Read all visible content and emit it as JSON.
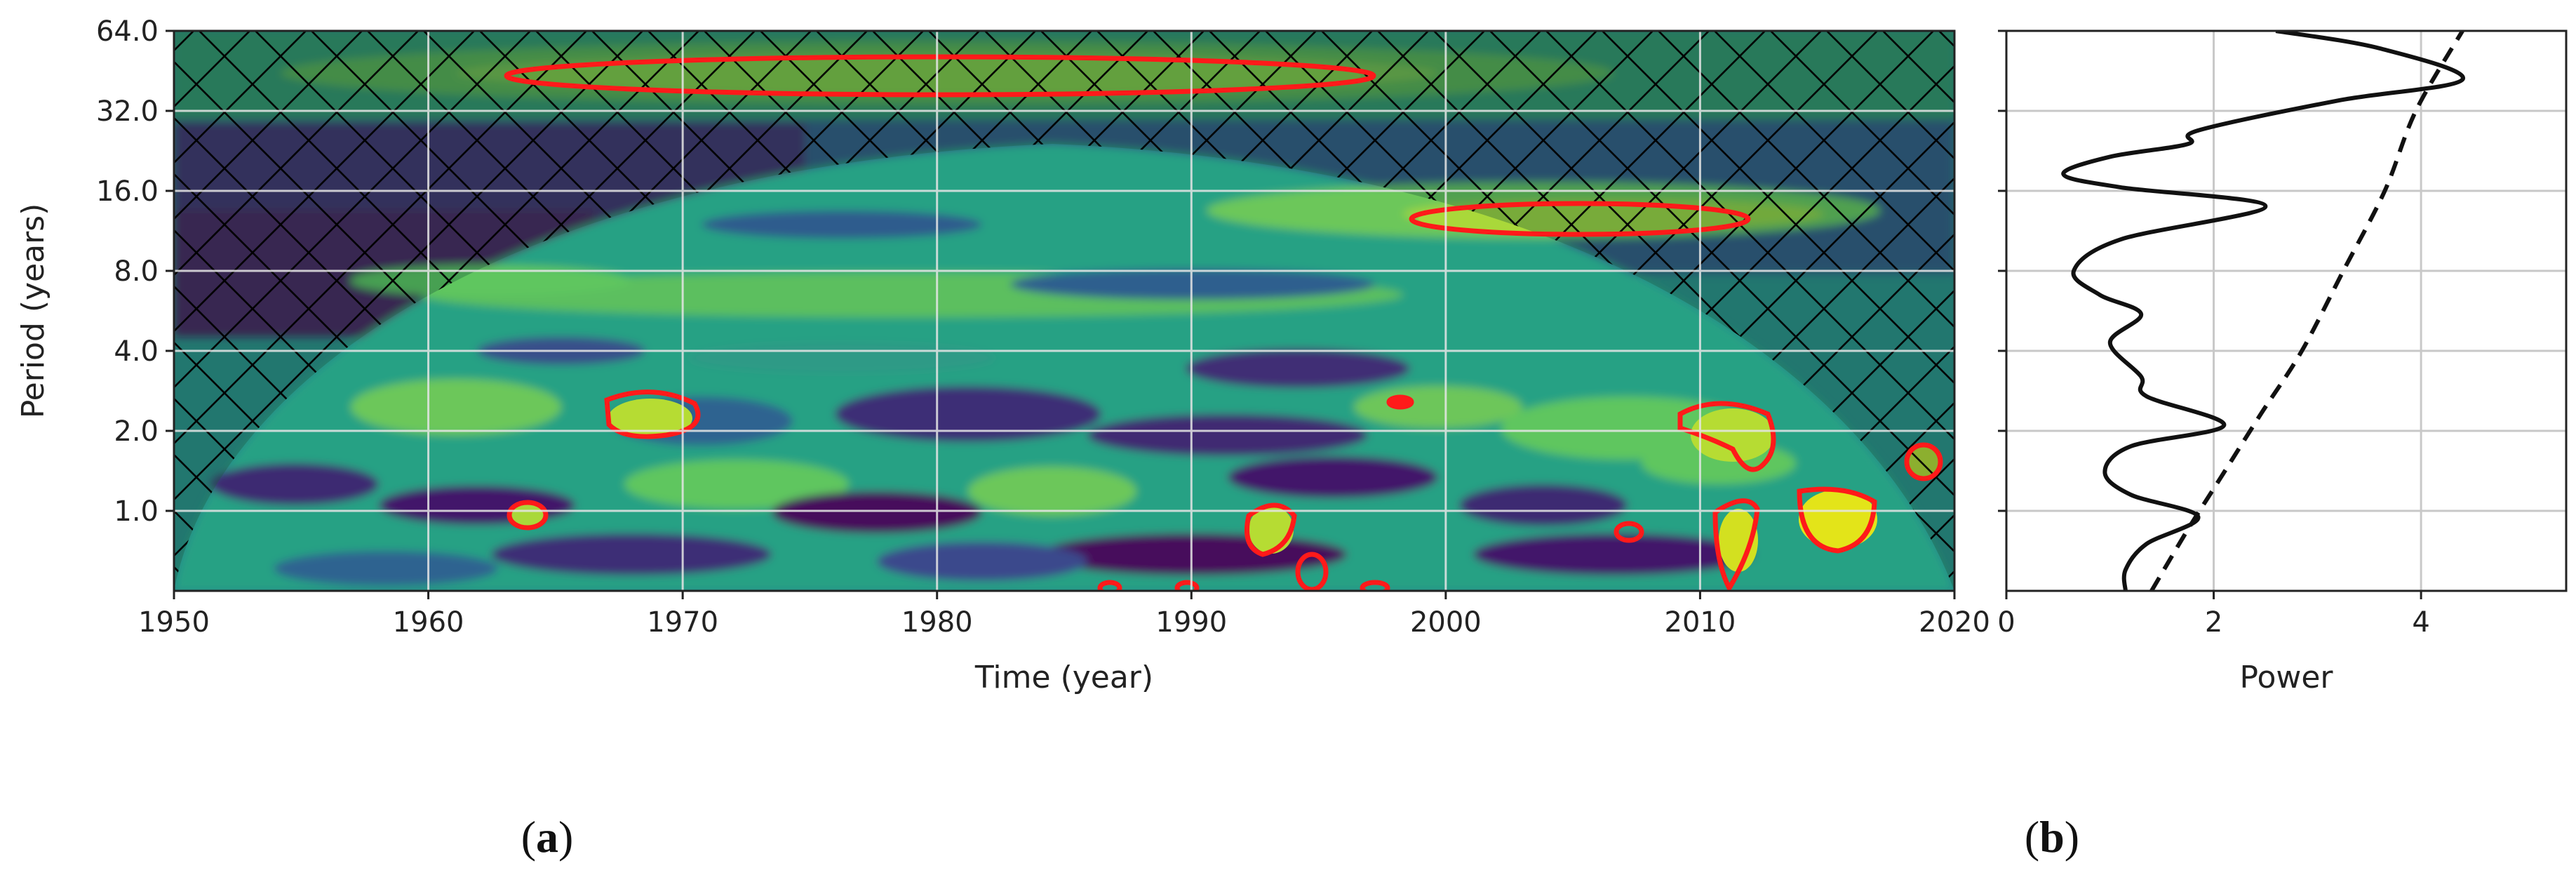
{
  "panel_a": {
    "caption_open": "(",
    "caption_letter": "a",
    "caption_close": ")",
    "xlabel": "Time (year)",
    "ylabel": "Period (years)",
    "x_ticks": [
      "1950",
      "1960",
      "1970",
      "1980",
      "1990",
      "2000",
      "2010",
      "2020"
    ],
    "y_ticks": [
      "1.0",
      "2.0",
      "4.0",
      "8.0",
      "16.0",
      "32.0",
      "64.0"
    ]
  },
  "panel_b": {
    "caption_open": "(",
    "caption_letter": "b",
    "caption_close": ")",
    "xlabel": "Power",
    "x_ticks": [
      "0",
      "2",
      "4"
    ]
  },
  "chart_data": [
    {
      "type": "heatmap",
      "panel": "a",
      "xlabel": "Time (year)",
      "ylabel": "Period (years)",
      "xlim": [
        1950,
        2020
      ],
      "ylim_period": [
        0.5,
        64
      ],
      "y_scale": "log2",
      "grid": true,
      "colormap": [
        "#460b5e",
        "#3b4a8c",
        "#2a7f8e",
        "#24a884",
        "#5ec962",
        "#bddf26",
        "#fde725"
      ],
      "hatch_color": "#000000",
      "significance_contour_color": "#ff1a1a",
      "significant_regions": [
        {
          "x_start": 1963.5,
          "x_end": 2001.5,
          "period_center": 45
        },
        {
          "x_start": 1998,
          "x_end": 2017,
          "period_center": 13
        },
        {
          "x_start": 1967,
          "x_end": 1971.5,
          "period_center": 2.5
        },
        {
          "x_start": 1963.5,
          "x_end": 1965,
          "period_center": 1.0
        },
        {
          "x_start": 1991.5,
          "x_end": 1994.5,
          "period_center": 0.9
        },
        {
          "x_start": 2009.5,
          "x_end": 2013.5,
          "period_center": 2.0
        },
        {
          "x_start": 2010,
          "x_end": 2012.5,
          "period_center": 0.8
        },
        {
          "x_start": 2013.5,
          "x_end": 2017.5,
          "period_center": 1.05
        },
        {
          "x_start": 2018,
          "x_end": 2020,
          "period_center": 1.6
        },
        {
          "x_start": 1998,
          "x_end": 1999,
          "period_center": 2.6
        },
        {
          "x_start": 1994,
          "x_end": 1996,
          "period_center": 0.6
        },
        {
          "x_start": 2007,
          "x_end": 2008.5,
          "period_center": 0.85
        }
      ]
    },
    {
      "type": "line",
      "panel": "b",
      "xlabel": "Power",
      "xlim": [
        0,
        5.4
      ],
      "ylim_period": [
        0.5,
        64
      ],
      "y_scale": "log2",
      "grid": true,
      "series": [
        {
          "style": "solid",
          "points": [
            [
              1.15,
              0.5
            ],
            [
              1.15,
              0.6
            ],
            [
              1.35,
              0.75
            ],
            [
              1.85,
              0.95
            ],
            [
              1.2,
              1.15
            ],
            [
              0.95,
              1.4
            ],
            [
              1.2,
              1.75
            ],
            [
              2.1,
              2.1
            ],
            [
              1.35,
              2.7
            ],
            [
              1.3,
              3.2
            ],
            [
              1.0,
              4.3
            ],
            [
              1.3,
              5.5
            ],
            [
              0.9,
              6.5
            ],
            [
              0.65,
              8.0
            ],
            [
              1.1,
              10.5
            ],
            [
              2.5,
              14
            ],
            [
              1.1,
              16.5
            ],
            [
              0.55,
              18.5
            ],
            [
              1.0,
              21.5
            ],
            [
              1.75,
              24
            ],
            [
              1.85,
              27
            ],
            [
              3.2,
              35
            ],
            [
              4.4,
              42
            ],
            [
              3.6,
              55
            ],
            [
              2.6,
              64
            ]
          ]
        },
        {
          "style": "dashed",
          "points": [
            [
              1.4,
              0.5
            ],
            [
              1.75,
              0.85
            ],
            [
              2.05,
              1.3
            ],
            [
              2.45,
              2.3
            ],
            [
              2.85,
              4.0
            ],
            [
              3.25,
              8.0
            ],
            [
              3.65,
              16
            ],
            [
              3.95,
              32
            ],
            [
              4.4,
              64
            ]
          ]
        }
      ]
    }
  ]
}
